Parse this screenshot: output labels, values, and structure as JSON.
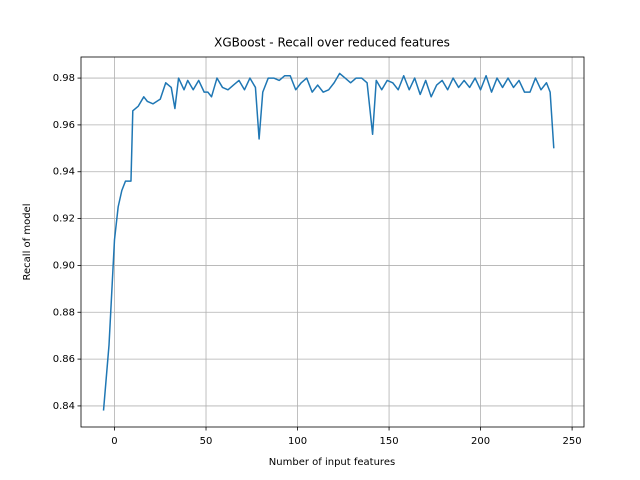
{
  "chart_data": {
    "type": "line",
    "title": "XGBoost - Recall over reduced features",
    "x_label": "Number of input features",
    "y_label": "Recall of model",
    "x": [
      -6,
      -3,
      0,
      2,
      4,
      6,
      8,
      9,
      10,
      13,
      16,
      18,
      21,
      23,
      25,
      28,
      31,
      33,
      35,
      38,
      40,
      43,
      46,
      49,
      51,
      53,
      56,
      59,
      62,
      65,
      68,
      71,
      74,
      77,
      79,
      81,
      84,
      87,
      90,
      93,
      96,
      99,
      102,
      105,
      108,
      111,
      114,
      117,
      120,
      123,
      126,
      129,
      132,
      135,
      138,
      141,
      143,
      146,
      149,
      152,
      155,
      158,
      161,
      164,
      167,
      170,
      173,
      176,
      179,
      182,
      185,
      188,
      191,
      194,
      197,
      200,
      203,
      206,
      209,
      212,
      215,
      218,
      221,
      224,
      227,
      230,
      233,
      236,
      238,
      240
    ],
    "series": [
      {
        "name": "Recall",
        "color": "#1f77b4",
        "values": [
          0.838,
          0.866,
          0.911,
          0.925,
          0.932,
          0.936,
          0.936,
          0.936,
          0.966,
          0.968,
          0.972,
          0.97,
          0.969,
          0.97,
          0.971,
          0.978,
          0.976,
          0.967,
          0.98,
          0.975,
          0.979,
          0.975,
          0.979,
          0.974,
          0.974,
          0.972,
          0.98,
          0.976,
          0.975,
          0.977,
          0.979,
          0.975,
          0.98,
          0.976,
          0.954,
          0.974,
          0.98,
          0.98,
          0.979,
          0.981,
          0.981,
          0.975,
          0.978,
          0.98,
          0.974,
          0.977,
          0.974,
          0.975,
          0.978,
          0.982,
          0.98,
          0.978,
          0.98,
          0.98,
          0.978,
          0.956,
          0.979,
          0.975,
          0.979,
          0.978,
          0.975,
          0.981,
          0.975,
          0.98,
          0.973,
          0.979,
          0.972,
          0.977,
          0.979,
          0.975,
          0.98,
          0.976,
          0.979,
          0.976,
          0.98,
          0.975,
          0.981,
          0.974,
          0.98,
          0.976,
          0.98,
          0.976,
          0.979,
          0.974,
          0.974,
          0.98,
          0.975,
          0.978,
          0.974,
          0.95
        ]
      }
    ],
    "xlim": [
      -18.3,
      256.5
    ],
    "ylim": [
      0.831,
      0.989
    ],
    "xticks": [
      0,
      50,
      100,
      150,
      200,
      250
    ],
    "yticks": [
      0.84,
      0.86,
      0.88,
      {
        "value": 0.9,
        "label": "0.90"
      },
      0.92,
      0.94,
      0.96,
      0.98
    ],
    "grid": true
  }
}
